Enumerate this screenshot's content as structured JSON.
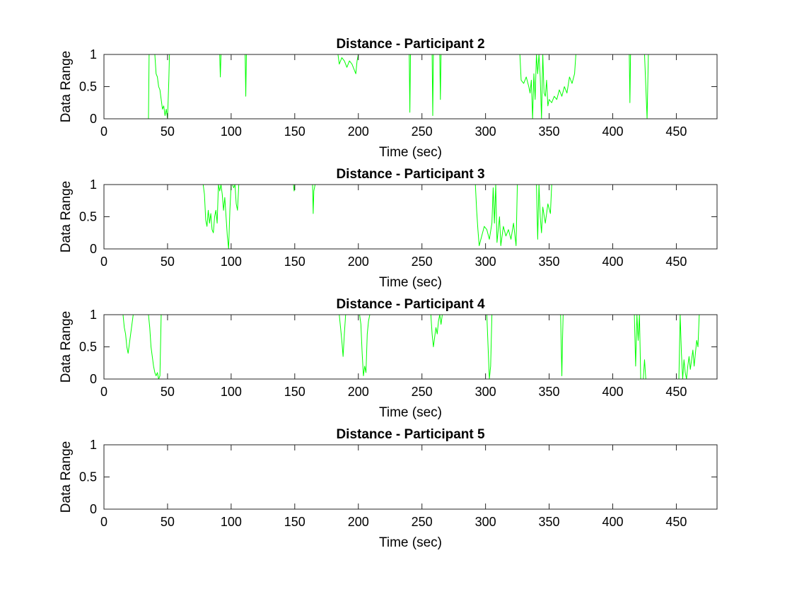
{
  "figure": {
    "background": "#ffffff",
    "line_color": "#00ff00"
  },
  "chart_data": [
    {
      "type": "line",
      "title": "Distance - Participant 2",
      "xlabel": "Time (sec)",
      "ylabel": "Data Range",
      "xlim": [
        0,
        482
      ],
      "ylim": [
        0,
        1
      ],
      "xticks": [
        0,
        50,
        100,
        150,
        200,
        250,
        300,
        350,
        400,
        450
      ],
      "yticks": [
        0,
        0.5,
        1
      ],
      "grid": false,
      "series": [
        {
          "x": [
            0,
            35,
            35.5,
            36,
            40,
            41,
            42,
            43,
            44,
            45,
            46,
            47,
            48,
            49,
            50,
            51,
            51.5,
            52,
            91,
            91.5,
            92,
            111,
            111.5,
            112,
            184,
            185,
            187,
            189,
            191,
            193,
            195,
            197,
            198,
            199,
            200,
            201,
            240,
            240.5,
            241,
            258,
            258.5,
            259,
            264,
            264.5,
            265,
            327,
            328,
            330,
            332,
            334,
            335,
            336,
            337,
            338,
            339,
            340,
            341,
            342,
            343,
            344,
            345,
            346,
            347,
            348,
            349,
            350,
            352,
            354,
            356,
            358,
            360,
            362,
            364,
            366,
            368,
            370,
            371,
            372,
            413,
            413.5,
            414,
            425,
            426,
            427,
            428,
            482
          ],
          "y": [
            0,
            0,
            1,
            1,
            1,
            0.7,
            0.65,
            0.5,
            0.45,
            0.3,
            0.15,
            0.2,
            0.05,
            0.15,
            0,
            0.6,
            1,
            1,
            1,
            0.65,
            1,
            1,
            0.35,
            1,
            1,
            0.85,
            0.95,
            0.9,
            0.8,
            0.9,
            0.85,
            0.75,
            0.7,
            0.9,
            1,
            1,
            1,
            0.1,
            1,
            1,
            0.05,
            1,
            1,
            0.3,
            1,
            1,
            0.6,
            0.55,
            0.65,
            0.5,
            0.4,
            0.6,
            0,
            0.7,
            0.3,
            1,
            0.7,
            1,
            0.65,
            0,
            1,
            0.4,
            0.35,
            0.6,
            0.2,
            0.3,
            0.25,
            0.35,
            0.3,
            0.45,
            0.35,
            0.5,
            0.4,
            0.65,
            0.55,
            0.7,
            1,
            1,
            1,
            0.25,
            1,
            1,
            0.5,
            0,
            1,
            1
          ]
        }
      ]
    },
    {
      "type": "line",
      "title": "Distance - Participant 3",
      "xlabel": "Time (sec)",
      "ylabel": "Data Range",
      "xlim": [
        0,
        482
      ],
      "ylim": [
        0,
        1
      ],
      "xticks": [
        0,
        50,
        100,
        150,
        200,
        250,
        300,
        350,
        400,
        450
      ],
      "yticks": [
        0,
        0.5,
        1
      ],
      "grid": false,
      "series": [
        {
          "x": [
            0,
            78,
            79,
            80,
            81,
            82,
            83,
            84,
            85,
            86,
            87,
            88,
            89,
            90,
            91,
            92,
            93,
            94,
            95,
            96,
            97,
            98,
            99,
            100,
            101,
            102,
            103,
            104,
            105,
            106,
            107,
            149,
            149.5,
            150,
            164,
            164.5,
            165,
            166,
            292,
            293,
            294,
            295,
            297,
            299,
            301,
            303,
            305,
            306,
            307,
            308,
            309,
            310,
            311,
            312,
            314,
            316,
            318,
            320,
            322,
            324,
            325,
            326,
            340,
            341,
            342,
            343,
            344,
            345,
            347,
            349,
            351,
            352,
            482
          ],
          "y": [
            1,
            1,
            0.85,
            0.45,
            0.35,
            0.6,
            0.4,
            0.55,
            0.3,
            0.25,
            0.5,
            0.6,
            0.4,
            1,
            0.9,
            1,
            0.85,
            0.6,
            0.8,
            0.5,
            0.2,
            0,
            0.6,
            1,
            1,
            0.95,
            1,
            0.7,
            0.6,
            1,
            1,
            1,
            0.9,
            1,
            1,
            0.55,
            0.9,
            1,
            1,
            0.6,
            0.3,
            0.05,
            0.2,
            0.35,
            0.3,
            0.15,
            0.4,
            0.95,
            0.4,
            1,
            0.1,
            0.3,
            0.5,
            0.05,
            0.35,
            0.2,
            0.3,
            0.15,
            0.4,
            0.05,
            1,
            1,
            1,
            0.15,
            1,
            0.5,
            0.25,
            0.65,
            0.4,
            0.7,
            0.55,
            1,
            1
          ]
        }
      ]
    },
    {
      "type": "line",
      "title": "Distance - Participant 4",
      "xlabel": "Time (sec)",
      "ylabel": "Data Range",
      "xlim": [
        0,
        482
      ],
      "ylim": [
        0,
        1
      ],
      "xticks": [
        0,
        50,
        100,
        150,
        200,
        250,
        300,
        350,
        400,
        450
      ],
      "yticks": [
        0,
        0.5,
        1
      ],
      "grid": false,
      "series": [
        {
          "x": [
            0,
            15,
            16,
            17,
            18,
            19,
            20,
            21,
            22,
            23,
            24,
            35,
            36,
            37,
            38,
            39,
            40,
            41,
            42,
            43,
            44,
            45,
            46,
            185,
            186,
            187,
            188,
            189,
            190,
            201,
            202,
            203,
            204,
            205,
            206,
            207,
            208,
            209,
            210,
            257,
            258,
            259,
            260,
            261,
            262,
            263,
            264,
            265,
            266,
            301,
            302,
            303,
            304,
            305,
            359,
            360,
            360.5,
            361,
            417,
            418,
            419,
            420,
            421,
            422,
            423,
            424,
            425,
            426,
            431,
            432,
            433,
            434,
            435,
            436,
            437,
            452,
            453,
            454,
            455,
            456,
            457,
            458,
            459,
            460,
            461,
            462,
            463,
            464,
            465,
            466,
            467,
            468,
            482
          ],
          "y": [
            1,
            1,
            0.8,
            0.7,
            0.5,
            0.4,
            0.55,
            0.7,
            0.85,
            1,
            1,
            1,
            0.8,
            0.5,
            0.35,
            0.2,
            0.1,
            0.05,
            0.1,
            0,
            0.05,
            1,
            1,
            1,
            0.8,
            0.6,
            0.35,
            0.7,
            1,
            1,
            0.85,
            0.4,
            0.05,
            0.2,
            0.1,
            0.7,
            0.9,
            1,
            1,
            1,
            0.7,
            0.5,
            0.65,
            0.8,
            0.7,
            0.9,
            1,
            0.85,
            1,
            1,
            0.5,
            0,
            0.2,
            1,
            1,
            0.05,
            0.6,
            1,
            1,
            0.2,
            1,
            0.6,
            1,
            0,
            0,
            0,
            0.3,
            0,
            0,
            0,
            0,
            0,
            0,
            0,
            0,
            0,
            1,
            0.4,
            0,
            0.3,
            0.1,
            0,
            0.2,
            0.35,
            0.15,
            0.3,
            0.45,
            0.2,
            0.4,
            0.6,
            0.5,
            1,
            1
          ]
        }
      ]
    },
    {
      "type": "line",
      "title": "Distance - Participant 5",
      "xlabel": "Time (sec)",
      "ylabel": "Data Range",
      "xlim": [
        0,
        482
      ],
      "ylim": [
        0,
        1
      ],
      "xticks": [
        0,
        50,
        100,
        150,
        200,
        250,
        300,
        350,
        400,
        450
      ],
      "yticks": [
        0,
        0.5,
        1
      ],
      "grid": false,
      "series": [
        {
          "x": [
            0,
            482
          ],
          "y": [
            0,
            0
          ]
        }
      ]
    }
  ]
}
